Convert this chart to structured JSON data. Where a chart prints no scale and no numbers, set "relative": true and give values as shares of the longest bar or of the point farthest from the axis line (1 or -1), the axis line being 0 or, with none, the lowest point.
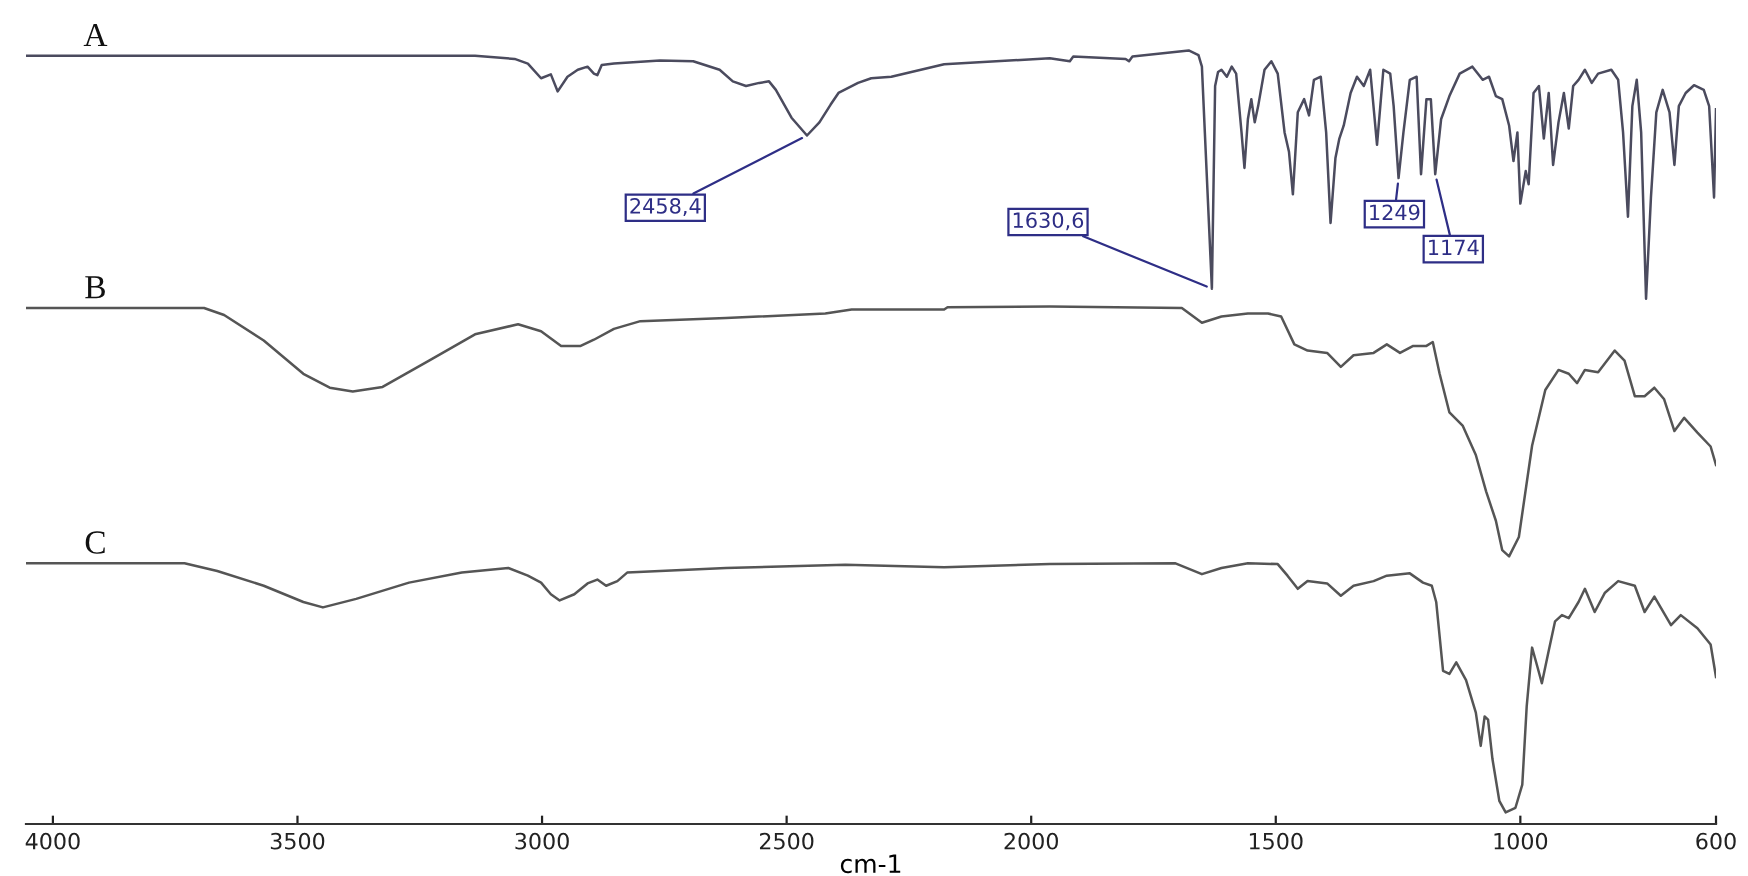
{
  "chart_data": {
    "type": "line",
    "xlabel": "cm-1",
    "relative": true,
    "xlim": [
      4055,
      600
    ],
    "xticks": [
      4000,
      3500,
      3000,
      2500,
      2000,
      1500,
      1000,
      600
    ],
    "series": [
      {
        "name": "A",
        "color": "#4b4b5e",
        "x": [
          4055,
          3137,
          3056,
          3029,
          3002,
          2982,
          2968,
          2948,
          2927,
          2907,
          2894,
          2887,
          2878,
          2853,
          2759,
          2691,
          2637,
          2610,
          2583,
          2556,
          2536,
          2522,
          2490,
          2458.4,
          2433,
          2410,
          2394,
          2354,
          2327,
          2286,
          2178,
          1962,
          1921,
          1914,
          1807,
          1800,
          1793,
          1678,
          1658,
          1651,
          1645,
          1630.6,
          1624,
          1618,
          1611,
          1600,
          1590,
          1581,
          1570,
          1564,
          1557,
          1550,
          1543,
          1536,
          1523,
          1509,
          1496,
          1482,
          1473,
          1465,
          1455,
          1442,
          1432,
          1422,
          1408,
          1397,
          1388,
          1378,
          1370,
          1361,
          1347,
          1334,
          1320,
          1307,
          1293,
          1280,
          1266,
          1259,
          1249,
          1239,
          1226,
          1212,
          1203,
          1192,
          1183,
          1174,
          1162,
          1145,
          1124,
          1098,
          1077,
          1064,
          1050,
          1037,
          1023,
          1014,
          1006,
          1000,
          989,
          983,
          973,
          962,
          952,
          942,
          933,
          922,
          911,
          901,
          892,
          881,
          868,
          854,
          841,
          814,
          800,
          790,
          780,
          771,
          762,
          753,
          743,
          733,
          722,
          709,
          695,
          685,
          676,
          662,
          645,
          625,
          614,
          604,
          600
        ],
        "values": [
          0.993,
          0.993,
          0.989,
          0.983,
          0.964,
          0.969,
          0.947,
          0.966,
          0.975,
          0.979,
          0.97,
          0.968,
          0.981,
          0.983,
          0.987,
          0.986,
          0.975,
          0.96,
          0.954,
          0.958,
          0.96,
          0.949,
          0.913,
          0.89,
          0.907,
          0.93,
          0.945,
          0.958,
          0.964,
          0.966,
          0.982,
          0.99,
          0.986,
          0.992,
          0.989,
          0.986,
          0.992,
          1.0,
          0.994,
          0.979,
          0.894,
          0.692,
          0.954,
          0.972,
          0.975,
          0.966,
          0.979,
          0.97,
          0.894,
          0.848,
          0.911,
          0.937,
          0.907,
          0.928,
          0.975,
          0.986,
          0.97,
          0.894,
          0.869,
          0.814,
          0.92,
          0.937,
          0.916,
          0.962,
          0.966,
          0.894,
          0.777,
          0.861,
          0.886,
          0.903,
          0.945,
          0.966,
          0.954,
          0.975,
          0.878,
          0.975,
          0.97,
          0.928,
          0.835,
          0.894,
          0.962,
          0.966,
          0.84,
          0.937,
          0.937,
          0.84,
          0.911,
          0.941,
          0.97,
          0.979,
          0.962,
          0.966,
          0.941,
          0.937,
          0.903,
          0.857,
          0.894,
          0.802,
          0.844,
          0.827,
          0.945,
          0.954,
          0.886,
          0.945,
          0.852,
          0.907,
          0.945,
          0.899,
          0.954,
          0.962,
          0.975,
          0.958,
          0.97,
          0.975,
          0.962,
          0.894,
          0.785,
          0.928,
          0.962,
          0.894,
          0.679,
          0.81,
          0.92,
          0.949,
          0.92,
          0.852,
          0.928,
          0.945,
          0.955,
          0.949,
          0.928,
          0.81,
          0.924
        ]
      },
      {
        "name": "B",
        "color": "#555555",
        "x": [
          4055,
          3691,
          3650,
          3569,
          3488,
          3434,
          3387,
          3326,
          3231,
          3137,
          3049,
          3002,
          2961,
          2921,
          2894,
          2853,
          2799,
          2624,
          2421,
          2367,
          2178,
          2171,
          1962,
          1692,
          1651,
          1611,
          1557,
          1516,
          1489,
          1462,
          1435,
          1395,
          1367,
          1341,
          1300,
          1273,
          1246,
          1219,
          1192,
          1179,
          1165,
          1145,
          1118,
          1091,
          1070,
          1050,
          1037,
          1023,
          1003,
          976,
          949,
          922,
          901,
          884,
          868,
          841,
          807,
          787,
          766,
          746,
          726,
          706,
          685,
          665,
          638,
          611,
          600
        ],
        "values": [
          0.667,
          0.667,
          0.658,
          0.625,
          0.582,
          0.564,
          0.559,
          0.565,
          0.599,
          0.633,
          0.646,
          0.637,
          0.618,
          0.618,
          0.626,
          0.64,
          0.65,
          0.654,
          0.66,
          0.665,
          0.665,
          0.668,
          0.669,
          0.667,
          0.648,
          0.656,
          0.66,
          0.66,
          0.656,
          0.62,
          0.612,
          0.609,
          0.591,
          0.606,
          0.609,
          0.62,
          0.609,
          0.618,
          0.618,
          0.623,
          0.582,
          0.532,
          0.515,
          0.477,
          0.43,
          0.392,
          0.354,
          0.346,
          0.371,
          0.489,
          0.561,
          0.587,
          0.582,
          0.57,
          0.587,
          0.584,
          0.612,
          0.599,
          0.553,
          0.553,
          0.564,
          0.549,
          0.508,
          0.525,
          0.506,
          0.488,
          0.464
        ]
      },
      {
        "name": "C",
        "color": "#555555",
        "x": [
          4055,
          3731,
          3664,
          3569,
          3488,
          3448,
          3380,
          3272,
          3164,
          3069,
          3029,
          3002,
          2982,
          2964,
          2934,
          2907,
          2887,
          2869,
          2846,
          2826,
          2624,
          2380,
          2178,
          1962,
          1705,
          1651,
          1611,
          1557,
          1496,
          1476,
          1455,
          1435,
          1395,
          1367,
          1341,
          1300,
          1273,
          1226,
          1199,
          1181,
          1172,
          1158,
          1145,
          1131,
          1111,
          1091,
          1081,
          1073,
          1066,
          1057,
          1043,
          1030,
          1010,
          996,
          987,
          976,
          965,
          956,
          942,
          929,
          915,
          901,
          881,
          868,
          848,
          827,
          800,
          766,
          746,
          726,
          692,
          672,
          638,
          611,
          600
        ],
        "values": [
          0.337,
          0.337,
          0.327,
          0.308,
          0.287,
          0.28,
          0.291,
          0.312,
          0.325,
          0.331,
          0.321,
          0.312,
          0.297,
          0.289,
          0.297,
          0.311,
          0.316,
          0.308,
          0.314,
          0.325,
          0.331,
          0.335,
          0.332,
          0.336,
          0.337,
          0.323,
          0.331,
          0.337,
          0.336,
          0.321,
          0.304,
          0.314,
          0.311,
          0.295,
          0.308,
          0.314,
          0.321,
          0.324,
          0.312,
          0.308,
          0.287,
          0.198,
          0.194,
          0.209,
          0.186,
          0.144,
          0.101,
          0.139,
          0.135,
          0.084,
          0.03,
          0.015,
          0.021,
          0.051,
          0.152,
          0.228,
          0.203,
          0.182,
          0.224,
          0.262,
          0.27,
          0.266,
          0.287,
          0.304,
          0.274,
          0.299,
          0.314,
          0.308,
          0.274,
          0.294,
          0.257,
          0.27,
          0.253,
          0.232,
          0.19
        ]
      }
    ],
    "annotations": [
      {
        "text": "2458,4",
        "x": 2458.4,
        "y": 0.89
      },
      {
        "text": "1630,6",
        "x": 1630.6,
        "y": 0.692
      },
      {
        "text": "1249",
        "x": 1249,
        "y": 0.835
      },
      {
        "text": "1174",
        "x": 1174,
        "y": 0.84
      }
    ]
  }
}
